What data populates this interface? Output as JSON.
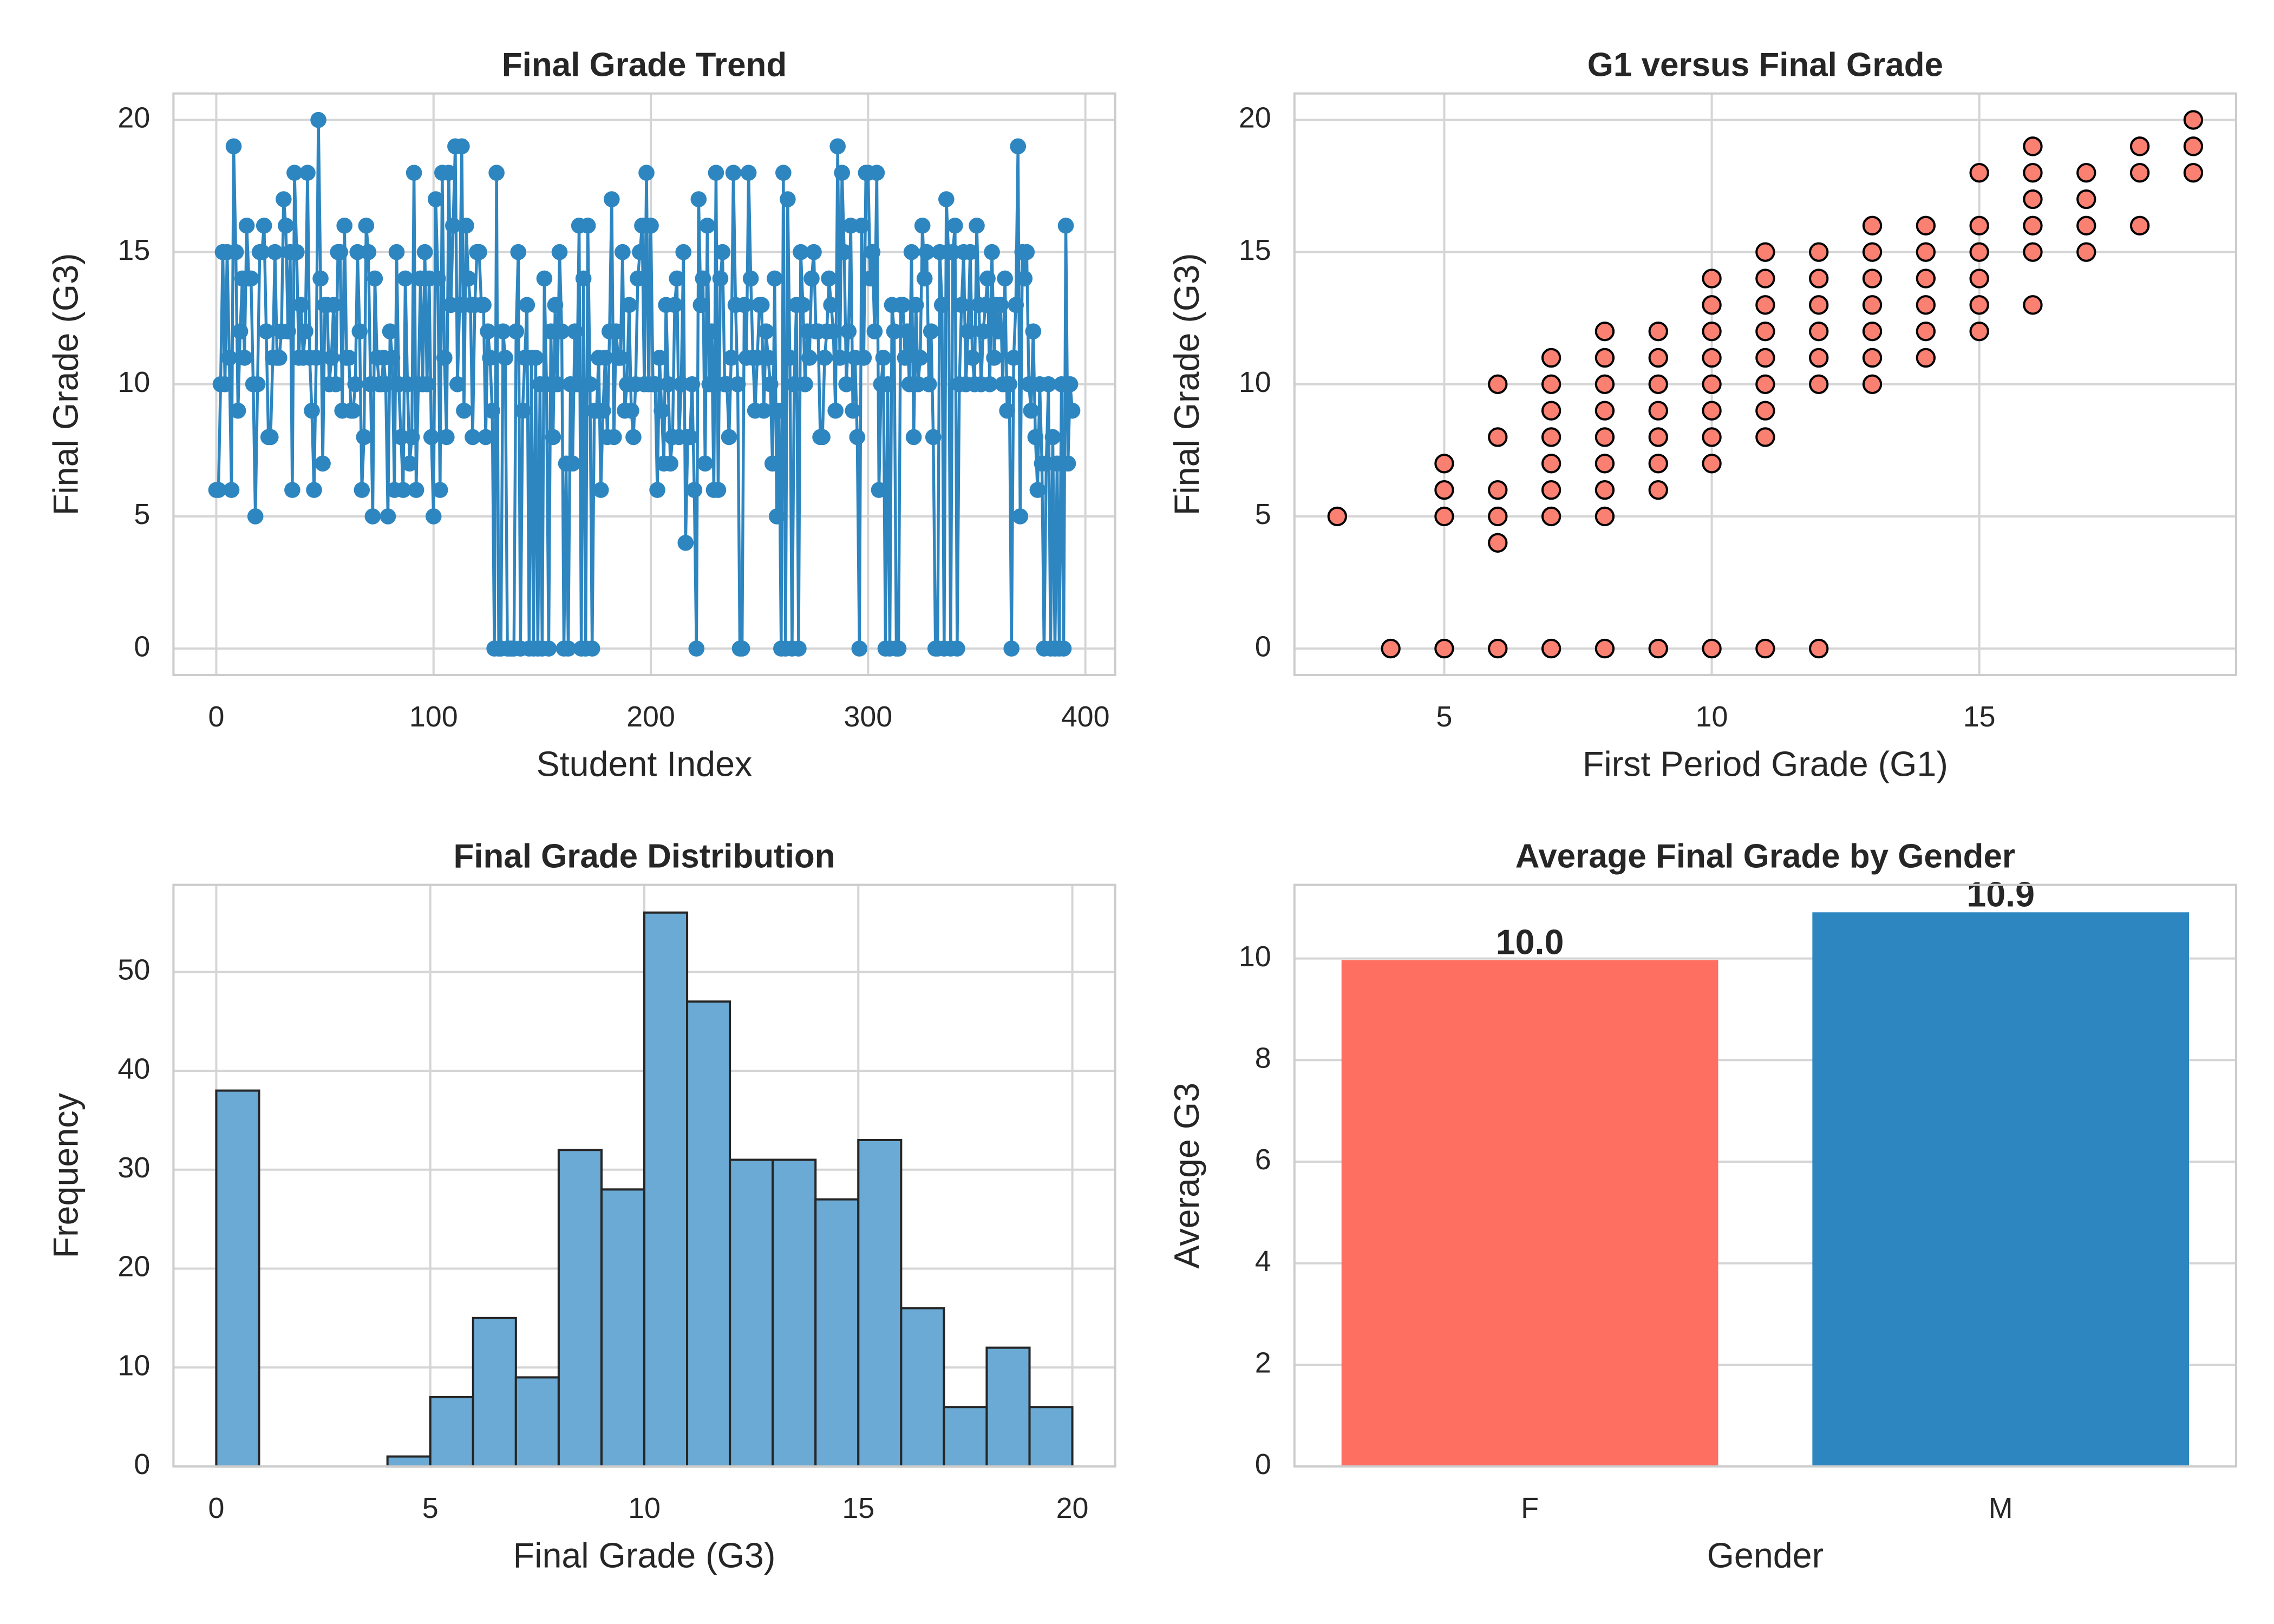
{
  "chart_data": [
    {
      "type": "line",
      "title": "Final Grade Trend",
      "xlabel": "Student Index",
      "ylabel": "Final Grade (G3)",
      "color": "#2e86c1",
      "values": [
        6,
        6,
        10,
        15,
        10,
        15,
        11,
        6,
        19,
        15,
        9,
        12,
        14,
        11,
        16,
        14,
        14,
        10,
        5,
        10,
        15,
        15,
        16,
        12,
        8,
        8,
        11,
        15,
        11,
        11,
        12,
        17,
        16,
        12,
        15,
        6,
        18,
        15,
        11,
        13,
        11,
        12,
        18,
        11,
        9,
        6,
        11,
        20,
        14,
        7,
        13,
        13,
        10,
        11,
        13,
        10,
        15,
        15,
        9,
        16,
        11,
        11,
        9,
        9,
        10,
        15,
        12,
        6,
        8,
        16,
        15,
        10,
        5,
        14,
        11,
        10,
        10,
        11,
        10,
        5,
        12,
        11,
        6,
        15,
        10,
        8,
        6,
        14,
        10,
        7,
        8,
        18,
        6,
        10,
        14,
        10,
        15,
        10,
        14,
        8,
        5,
        17,
        14,
        6,
        18,
        11,
        8,
        18,
        13,
        16,
        19,
        10,
        13,
        19,
        9,
        16,
        14,
        13,
        8,
        13,
        15,
        15,
        13,
        13,
        8,
        12,
        11,
        9,
        0,
        18,
        0,
        0,
        12,
        11,
        0,
        0,
        0,
        0,
        12,
        15,
        0,
        9,
        11,
        13,
        0,
        11,
        0,
        11,
        0,
        10,
        0,
        14,
        10,
        0,
        12,
        8,
        13,
        10,
        15,
        12,
        0,
        7,
        0,
        10,
        7,
        12,
        10,
        16,
        0,
        14,
        0,
        16,
        10,
        0,
        9,
        9,
        11,
        6,
        9,
        11,
        8,
        12,
        17,
        8,
        12,
        11,
        11,
        15,
        9,
        10,
        13,
        9,
        8,
        10,
        14,
        15,
        16,
        10,
        18,
        10,
        16,
        10,
        10,
        6,
        11,
        9,
        7,
        13,
        10,
        7,
        8,
        13,
        14,
        8,
        10,
        15,
        4,
        8,
        8,
        10,
        6,
        0,
        17,
        13,
        14,
        7,
        16,
        10,
        12,
        6,
        18,
        6,
        14,
        15,
        10,
        10,
        8,
        11,
        18,
        13,
        10,
        0,
        0,
        13,
        11,
        18,
        14,
        11,
        9,
        11,
        13,
        13,
        9,
        12,
        11,
        10,
        7,
        14,
        5,
        9,
        0,
        18,
        0,
        17,
        11,
        0,
        10,
        13,
        0,
        15,
        13,
        10,
        12,
        11,
        14,
        15,
        12,
        12,
        8,
        8,
        11,
        12,
        14,
        13,
        12,
        9,
        19,
        11,
        18,
        15,
        10,
        12,
        16,
        9,
        11,
        8,
        0,
        16,
        11,
        18,
        18,
        14,
        15,
        12,
        18,
        6,
        10,
        11,
        0,
        10,
        0,
        13,
        12,
        0,
        0,
        13,
        13,
        11,
        12,
        10,
        15,
        8,
        13,
        10,
        11,
        16,
        14,
        15,
        10,
        12,
        8,
        0,
        0,
        15,
        13,
        0,
        17,
        15,
        0,
        15,
        16,
        0,
        10,
        13,
        15,
        10,
        12,
        15,
        11,
        10,
        16,
        13,
        10,
        12,
        13,
        14,
        10,
        15,
        11,
        13,
        12,
        13,
        10,
        14,
        9,
        10,
        0,
        11,
        13,
        19,
        5,
        15,
        14,
        15,
        10,
        9,
        12,
        8,
        6,
        10,
        7,
        0,
        7,
        10,
        0,
        8,
        0,
        7,
        0,
        10,
        0,
        16,
        7,
        10,
        9
      ],
      "xlim": [
        -19.7,
        413.7
      ],
      "ylim": [
        -1,
        21
      ],
      "xticks": [
        0,
        100,
        200,
        300,
        400
      ],
      "yticks": [
        0,
        5,
        10,
        15,
        20
      ],
      "grid": true
    },
    {
      "type": "scatter",
      "title": "G1 versus Final Grade",
      "xlabel": "First Period Grade (G1)",
      "ylabel": "Final Grade (G3)",
      "color": "#fa8072",
      "edgecolor": "#000000",
      "x": [
        3,
        4,
        5,
        5,
        5,
        5,
        6,
        6,
        6,
        6,
        6,
        6,
        7,
        7,
        7,
        7,
        7,
        7,
        7,
        7,
        8,
        8,
        8,
        8,
        8,
        8,
        8,
        8,
        8,
        9,
        9,
        9,
        9,
        9,
        9,
        9,
        9,
        10,
        10,
        10,
        10,
        10,
        10,
        10,
        10,
        10,
        11,
        11,
        11,
        11,
        11,
        11,
        11,
        11,
        11,
        12,
        12,
        12,
        12,
        12,
        12,
        12,
        13,
        13,
        13,
        13,
        13,
        13,
        13,
        14,
        14,
        14,
        14,
        14,
        14,
        15,
        15,
        15,
        15,
        15,
        15,
        16,
        16,
        16,
        16,
        16,
        16,
        17,
        17,
        17,
        17,
        18,
        18,
        18,
        19,
        19,
        19
      ],
      "y": [
        5,
        0,
        0,
        5,
        6,
        7,
        0,
        4,
        5,
        6,
        8,
        10,
        0,
        5,
        6,
        7,
        8,
        9,
        10,
        11,
        0,
        5,
        6,
        7,
        8,
        9,
        10,
        11,
        12,
        0,
        6,
        7,
        8,
        9,
        10,
        11,
        12,
        0,
        7,
        8,
        9,
        10,
        11,
        12,
        13,
        14,
        0,
        8,
        9,
        10,
        11,
        12,
        13,
        14,
        15,
        0,
        10,
        11,
        12,
        13,
        14,
        15,
        10,
        11,
        12,
        13,
        14,
        15,
        16,
        11,
        12,
        13,
        14,
        15,
        16,
        12,
        13,
        14,
        15,
        16,
        18,
        13,
        15,
        16,
        17,
        18,
        19,
        15,
        16,
        17,
        18,
        16,
        18,
        19,
        18,
        19,
        20
      ],
      "xlim": [
        2.2,
        19.8
      ],
      "ylim": [
        -1,
        21
      ],
      "xticks": [
        5,
        10,
        15
      ],
      "yticks": [
        0,
        5,
        10,
        15,
        20
      ],
      "grid": true
    },
    {
      "type": "histogram",
      "title": "Final Grade Distribution",
      "xlabel": "Final Grade (G3)",
      "ylabel": "Frequency",
      "color": "#6aaad4",
      "edgecolor": "#262626",
      "bins": [
        0,
        1,
        2,
        3,
        4,
        5,
        6,
        7,
        8,
        9,
        10,
        11,
        12,
        13,
        14,
        15,
        16,
        17,
        18,
        19,
        20
      ],
      "counts": [
        38,
        0,
        0,
        0,
        1,
        7,
        15,
        9,
        32,
        28,
        56,
        47,
        31,
        31,
        27,
        33,
        16,
        6,
        12,
        6
      ],
      "xlim": [
        -1,
        21
      ],
      "ylim": [
        0,
        58.8
      ],
      "xticks": [
        0,
        5,
        10,
        15,
        20
      ],
      "yticks": [
        0,
        10,
        20,
        30,
        40,
        50
      ],
      "grid": true
    },
    {
      "type": "bar",
      "title": "Average Final Grade by Gender",
      "xlabel": "Gender",
      "ylabel": "Average G3",
      "categories": [
        "F",
        "M"
      ],
      "values": [
        9.97,
        10.91
      ],
      "value_labels": [
        "10.0",
        "10.9"
      ],
      "colors": [
        "#ff6f61",
        "#2e86c1"
      ],
      "ylim": [
        0,
        11.45
      ],
      "yticks": [
        0,
        2,
        4,
        6,
        8,
        10
      ],
      "grid": true
    }
  ]
}
